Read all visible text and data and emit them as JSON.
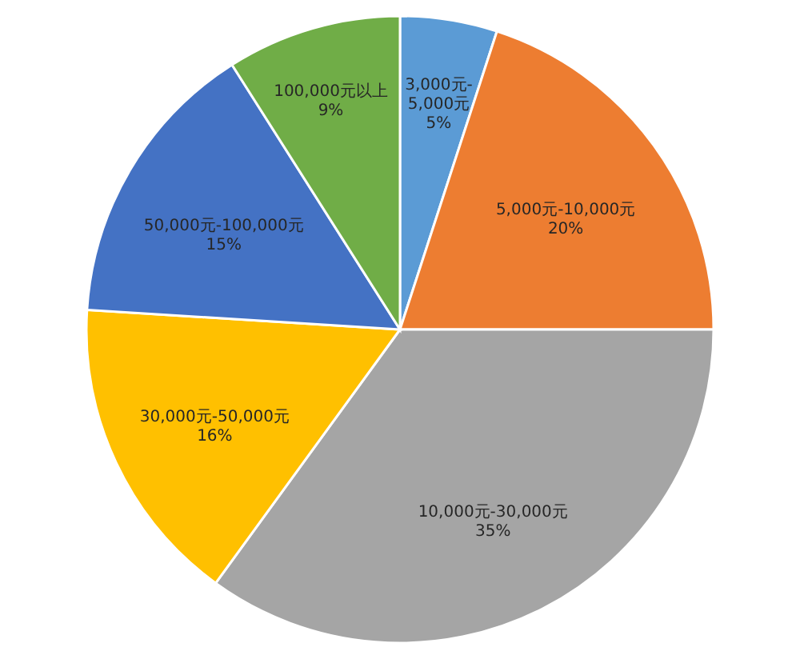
{
  "chart_data": {
    "type": "pie",
    "categories": [
      "3,000元-\n5,000元",
      "5,000元-10,000元",
      "10,000元-30,000元",
      "30,000元-50,000元",
      "50,000元-100,000元",
      "100,000元以上"
    ],
    "values": [
      5,
      20,
      35,
      16,
      15,
      9
    ],
    "value_labels": [
      "5%",
      "20%",
      "35%",
      "16%",
      "15%",
      "9%"
    ],
    "colors": [
      "#5b9bd5",
      "#ed7d31",
      "#a5a5a5",
      "#ffc000",
      "#4472c4",
      "#70ad47"
    ],
    "legend": false
  }
}
